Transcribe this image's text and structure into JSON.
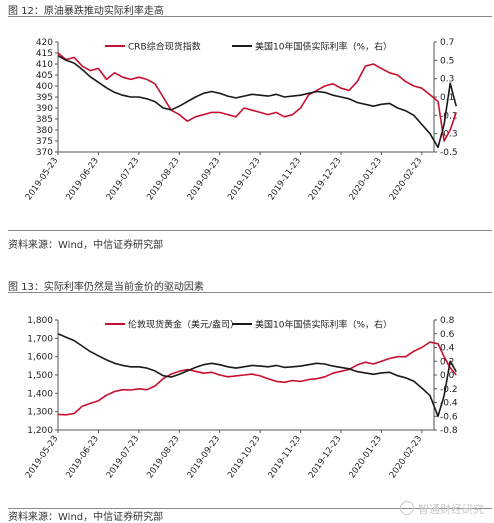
{
  "figures": [
    {
      "fig_title": "图 12：原油暴跌推动实际利率走高",
      "source": "资料来源：Wind，中信证券研究部"
    },
    {
      "fig_title": "图 13：实际利率仍然是当前金价的驱动因素",
      "source": "资料来源：Wind，中信证券研究部"
    }
  ],
  "watermark": "智通财经研究",
  "colors": {
    "red": "#c8102e",
    "black": "#1a1a1a",
    "axis": "#555555"
  },
  "chart_data": [
    {
      "type": "line",
      "categories": [
        "2019-05-23",
        "2019-06-23",
        "2019-07-23",
        "2019-08-23",
        "2019-09-23",
        "2019-10-23",
        "2019-11-23",
        "2019-12-23",
        "2020-01-23",
        "2020-02-23"
      ],
      "ylim_left": [
        370,
        420
      ],
      "yticks_left": [
        "370",
        "375",
        "380",
        "385",
        "390",
        "395",
        "400",
        "405",
        "410",
        "415",
        "420"
      ],
      "ylim_right": [
        -0.5,
        0.7
      ],
      "yticks_right": [
        "-0.5",
        "-0.3",
        "-0.1",
        "0.1",
        "0.3",
        "0.5",
        "0.7"
      ],
      "series": [
        {
          "name": "CRB综合现货指数",
          "axis": "left",
          "color": "#c8102e",
          "x": [
            0,
            0.2,
            0.4,
            0.6,
            0.8,
            1.0,
            1.2,
            1.4,
            1.6,
            1.8,
            2.0,
            2.2,
            2.4,
            2.6,
            2.8,
            3.0,
            3.2,
            3.4,
            3.6,
            3.8,
            4.0,
            4.2,
            4.4,
            4.6,
            4.8,
            5.0,
            5.2,
            5.4,
            5.6,
            5.8,
            6.0,
            6.2,
            6.4,
            6.6,
            6.8,
            7.0,
            7.2,
            7.4,
            7.6,
            7.8,
            8.0,
            8.2,
            8.4,
            8.6,
            8.8,
            9.0,
            9.2,
            9.4,
            9.55,
            9.7,
            9.85
          ],
          "values": [
            415,
            412,
            413,
            409,
            407,
            408,
            403,
            406,
            404,
            403,
            404,
            403,
            401,
            395,
            389,
            387,
            384,
            386,
            387,
            388,
            388,
            387,
            386,
            390,
            389,
            388,
            387,
            388,
            386,
            387,
            390,
            396,
            398,
            400,
            401,
            399,
            398,
            402,
            409,
            410,
            408,
            406,
            405,
            402,
            400,
            399,
            396,
            393,
            375,
            380,
            388
          ]
        },
        {
          "name": "美国10年国债实际利率（%，右）",
          "axis": "right",
          "color": "#1a1a1a",
          "x": [
            0,
            0.2,
            0.4,
            0.6,
            0.8,
            1.0,
            1.2,
            1.4,
            1.6,
            1.8,
            2.0,
            2.2,
            2.4,
            2.6,
            2.8,
            3.0,
            3.2,
            3.4,
            3.6,
            3.8,
            4.0,
            4.2,
            4.4,
            4.6,
            4.8,
            5.0,
            5.2,
            5.4,
            5.6,
            5.8,
            6.0,
            6.2,
            6.4,
            6.6,
            6.8,
            7.0,
            7.2,
            7.4,
            7.6,
            7.8,
            8.0,
            8.2,
            8.4,
            8.6,
            8.8,
            9.0,
            9.2,
            9.4,
            9.55,
            9.7,
            9.85
          ],
          "values": [
            0.55,
            0.5,
            0.47,
            0.4,
            0.32,
            0.26,
            0.2,
            0.15,
            0.12,
            0.1,
            0.1,
            0.08,
            0.05,
            -0.02,
            -0.04,
            0.0,
            0.05,
            0.1,
            0.14,
            0.16,
            0.14,
            0.11,
            0.09,
            0.11,
            0.13,
            0.12,
            0.11,
            0.13,
            0.1,
            0.11,
            0.12,
            0.14,
            0.16,
            0.15,
            0.12,
            0.1,
            0.08,
            0.04,
            0.02,
            0.0,
            0.02,
            0.03,
            -0.02,
            -0.05,
            -0.1,
            -0.2,
            -0.3,
            -0.45,
            -0.2,
            0.25,
            0.0
          ]
        }
      ]
    },
    {
      "type": "line",
      "categories": [
        "2019-05-23",
        "2019-06-23",
        "2019-07-23",
        "2019-08-23",
        "2019-09-23",
        "2019-10-23",
        "2019-11-23",
        "2019-12-23",
        "2020-01-23",
        "2020-02-23"
      ],
      "ylim_left": [
        1200,
        1800
      ],
      "yticks_left": [
        "1,200",
        "1,300",
        "1,400",
        "1,500",
        "1,600",
        "1,700",
        "1,800"
      ],
      "ylim_right": [
        -0.8,
        0.8
      ],
      "yticks_right": [
        "-0.8",
        "-0.6",
        "-0.4",
        "-0.2",
        "0.0",
        "0.2",
        "0.4",
        "0.6",
        "0.8"
      ],
      "series": [
        {
          "name": "伦敦现货黄金（美元/盎司）",
          "axis": "left",
          "color": "#c8102e",
          "x": [
            0,
            0.2,
            0.4,
            0.6,
            0.8,
            1.0,
            1.2,
            1.4,
            1.6,
            1.8,
            2.0,
            2.2,
            2.4,
            2.6,
            2.8,
            3.0,
            3.2,
            3.4,
            3.6,
            3.8,
            4.0,
            4.2,
            4.4,
            4.6,
            4.8,
            5.0,
            5.2,
            5.4,
            5.6,
            5.8,
            6.0,
            6.2,
            6.4,
            6.6,
            6.8,
            7.0,
            7.2,
            7.4,
            7.6,
            7.8,
            8.0,
            8.2,
            8.4,
            8.6,
            8.8,
            9.0,
            9.2,
            9.4,
            9.55,
            9.7,
            9.85
          ],
          "values": [
            1285,
            1283,
            1290,
            1330,
            1345,
            1360,
            1390,
            1410,
            1420,
            1418,
            1425,
            1420,
            1440,
            1480,
            1505,
            1520,
            1530,
            1520,
            1510,
            1515,
            1500,
            1490,
            1495,
            1500,
            1505,
            1495,
            1480,
            1465,
            1460,
            1470,
            1465,
            1475,
            1480,
            1490,
            1510,
            1520,
            1530,
            1555,
            1570,
            1560,
            1575,
            1590,
            1600,
            1600,
            1630,
            1650,
            1680,
            1670,
            1600,
            1540,
            1500
          ]
        },
        {
          "name": "美国10年国债实际利率（%，右）",
          "axis": "right",
          "color": "#1a1a1a",
          "x": [
            0,
            0.2,
            0.4,
            0.6,
            0.8,
            1.0,
            1.2,
            1.4,
            1.6,
            1.8,
            2.0,
            2.2,
            2.4,
            2.6,
            2.8,
            3.0,
            3.2,
            3.4,
            3.6,
            3.8,
            4.0,
            4.2,
            4.4,
            4.6,
            4.8,
            5.0,
            5.2,
            5.4,
            5.6,
            5.8,
            6.0,
            6.2,
            6.4,
            6.6,
            6.8,
            7.0,
            7.2,
            7.4,
            7.6,
            7.8,
            8.0,
            8.2,
            8.4,
            8.6,
            8.8,
            9.0,
            9.2,
            9.4,
            9.55,
            9.7,
            9.85
          ],
          "values": [
            0.6,
            0.55,
            0.5,
            0.42,
            0.34,
            0.28,
            0.22,
            0.17,
            0.14,
            0.12,
            0.12,
            0.1,
            0.06,
            -0.01,
            -0.03,
            0.01,
            0.06,
            0.11,
            0.15,
            0.17,
            0.15,
            0.12,
            0.1,
            0.12,
            0.14,
            0.13,
            0.12,
            0.14,
            0.11,
            0.12,
            0.13,
            0.15,
            0.17,
            0.16,
            0.13,
            0.11,
            0.09,
            0.05,
            0.03,
            0.01,
            0.03,
            0.04,
            -0.01,
            -0.04,
            -0.09,
            -0.19,
            -0.3,
            -0.6,
            -0.3,
            0.2,
            0.05
          ]
        }
      ]
    }
  ]
}
